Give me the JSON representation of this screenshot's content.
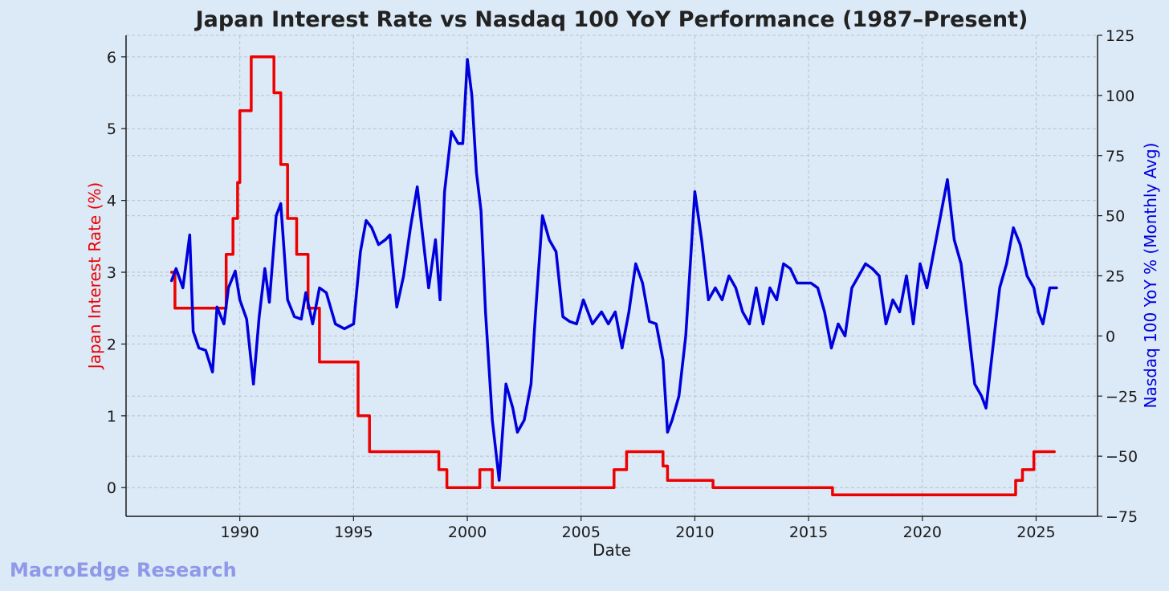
{
  "watermark": "MacroEdge Research",
  "chart_data": {
    "type": "line",
    "title": "Japan Interest Rate vs Nasdaq 100 YoY Performance (1987–Present)",
    "xlabel": "Date",
    "xlim": [
      1985.0,
      2027.7
    ],
    "x_ticks": [
      1990,
      1995,
      2000,
      2005,
      2010,
      2015,
      2020,
      2025
    ],
    "x_tick_labels": [
      "1990",
      "1995",
      "2000",
      "2005",
      "2010",
      "2015",
      "2020",
      "2025"
    ],
    "left_axis": {
      "label": "Japan Interest Rate (%)",
      "ylim": [
        -0.4,
        6.3
      ],
      "ticks": [
        0,
        1,
        2,
        3,
        4,
        5,
        6
      ],
      "tick_labels": [
        "0",
        "1",
        "2",
        "3",
        "4",
        "5",
        "6"
      ]
    },
    "right_axis": {
      "label": "Nasdaq 100 YoY % (Monthly Avg)",
      "ylim": [
        -75,
        125
      ],
      "ticks": [
        -75,
        -50,
        -25,
        0,
        25,
        50,
        75,
        100,
        125
      ],
      "tick_labels": [
        "−75",
        "−50",
        "−25",
        "0",
        "25",
        "50",
        "75",
        "100",
        "125"
      ]
    },
    "grid": true,
    "colors": {
      "rate": "#ee0000",
      "nasdaq": "#0000dd",
      "background": "#dce9f6",
      "grid": "#b9c2cc"
    },
    "series": [
      {
        "axis": "left",
        "step": true,
        "x": [
          1987.0,
          1987.15,
          1989.4,
          1989.7,
          1989.9,
          1990.0,
          1990.5,
          1991.5,
          1991.8,
          1992.1,
          1992.5,
          1993.0,
          1993.5,
          1995.2,
          1995.7,
          1998.75,
          1999.1,
          2000.55,
          2001.1,
          2006.45,
          2007.0,
          2008.6,
          2008.8,
          2010.8,
          2016.05,
          2024.1,
          2024.4,
          2024.9,
          2025.8
        ],
        "values": [
          3.0,
          2.5,
          3.25,
          3.75,
          4.25,
          5.25,
          6.0,
          5.5,
          4.5,
          3.75,
          3.25,
          2.5,
          1.75,
          1.0,
          0.5,
          0.25,
          0.0,
          0.25,
          0.0,
          0.25,
          0.5,
          0.3,
          0.1,
          0.0,
          -0.1,
          0.1,
          0.25,
          0.5,
          0.5
        ]
      },
      {
        "axis": "right",
        "x": [
          1987.0,
          1987.2,
          1987.5,
          1987.8,
          1987.95,
          1988.2,
          1988.5,
          1988.8,
          1989.0,
          1989.3,
          1989.5,
          1989.8,
          1990.0,
          1990.3,
          1990.6,
          1990.85,
          1991.1,
          1991.3,
          1991.6,
          1991.8,
          1992.1,
          1992.4,
          1992.7,
          1992.9,
          1993.2,
          1993.5,
          1993.8,
          1994.2,
          1994.6,
          1995.0,
          1995.3,
          1995.55,
          1995.8,
          1996.1,
          1996.4,
          1996.6,
          1996.9,
          1997.2,
          1997.5,
          1997.8,
          1998.0,
          1998.3,
          1998.6,
          1998.8,
          1999.0,
          1999.3,
          1999.6,
          1999.8,
          2000.0,
          2000.2,
          2000.4,
          2000.6,
          2000.8,
          2001.1,
          2001.4,
          2001.7,
          2002.0,
          2002.2,
          2002.5,
          2002.8,
          2003.0,
          2003.3,
          2003.6,
          2003.9,
          2004.2,
          2004.5,
          2004.8,
          2005.1,
          2005.5,
          2005.9,
          2006.2,
          2006.5,
          2006.8,
          2007.1,
          2007.4,
          2007.7,
          2008.0,
          2008.3,
          2008.6,
          2008.8,
          2009.0,
          2009.3,
          2009.6,
          2009.8,
          2010.0,
          2010.3,
          2010.6,
          2010.9,
          2011.2,
          2011.5,
          2011.8,
          2012.1,
          2012.4,
          2012.7,
          2013.0,
          2013.3,
          2013.6,
          2013.9,
          2014.2,
          2014.5,
          2014.8,
          2015.1,
          2015.4,
          2015.7,
          2016.0,
          2016.3,
          2016.6,
          2016.9,
          2017.2,
          2017.5,
          2017.8,
          2018.1,
          2018.4,
          2018.7,
          2019.0,
          2019.3,
          2019.6,
          2019.9,
          2020.2,
          2020.5,
          2020.8,
          2021.1,
          2021.4,
          2021.7,
          2022.0,
          2022.3,
          2022.6,
          2022.8,
          2023.1,
          2023.4,
          2023.7,
          2024.0,
          2024.3,
          2024.6,
          2024.9,
          2025.1,
          2025.3,
          2025.6,
          2025.9
        ],
        "values": [
          23,
          28,
          20,
          42,
          2,
          -5,
          -6,
          -15,
          12,
          5,
          20,
          27,
          15,
          7,
          -20,
          8,
          28,
          14,
          50,
          55,
          15,
          8,
          7,
          18,
          5,
          20,
          18,
          5,
          3,
          5,
          35,
          48,
          45,
          38,
          40,
          42,
          12,
          25,
          45,
          62,
          45,
          20,
          40,
          15,
          60,
          85,
          80,
          80,
          115,
          100,
          68,
          52,
          10,
          -35,
          -60,
          -20,
          -30,
          -40,
          -35,
          -20,
          10,
          50,
          40,
          35,
          8,
          6,
          5,
          15,
          5,
          10,
          5,
          10,
          -5,
          10,
          30,
          22,
          6,
          5,
          -10,
          -40,
          -35,
          -25,
          0,
          30,
          60,
          40,
          15,
          20,
          15,
          25,
          20,
          10,
          5,
          20,
          5,
          20,
          15,
          30,
          28,
          22,
          22,
          22,
          20,
          10,
          -5,
          5,
          0,
          20,
          25,
          30,
          28,
          25,
          5,
          15,
          10,
          25,
          5,
          30,
          20,
          35,
          50,
          65,
          40,
          30,
          5,
          -20,
          -25,
          -30,
          -5,
          20,
          30,
          45,
          38,
          25,
          20,
          10,
          5,
          20,
          20
        ]
      }
    ]
  }
}
